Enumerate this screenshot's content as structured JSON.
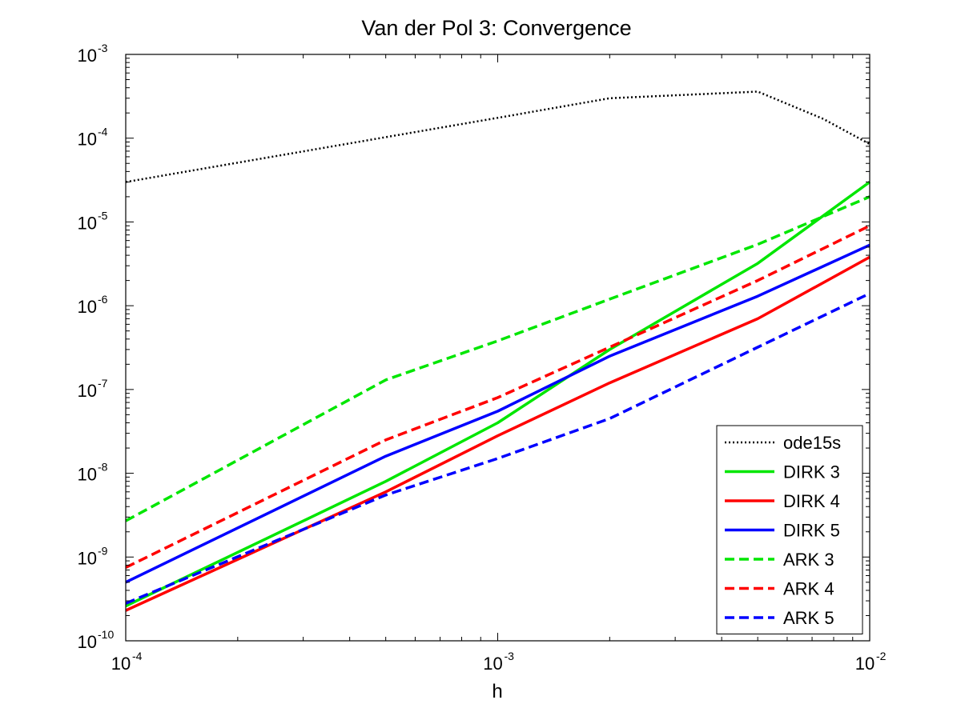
{
  "chart_data": {
    "type": "line",
    "title": "Van der Pol 3: Convergence",
    "xlabel": "h",
    "ylabel": "",
    "xscale": "log",
    "yscale": "log",
    "xlim": [
      0.0001,
      0.01
    ],
    "ylim": [
      1e-10,
      0.001
    ],
    "grid": false,
    "legend_position": "bottom-right",
    "x_ticks": [
      {
        "value": 0.0001,
        "base": "10",
        "exp": "-4"
      },
      {
        "value": 0.001,
        "base": "10",
        "exp": "-3"
      },
      {
        "value": 0.01,
        "base": "10",
        "exp": "-2"
      }
    ],
    "y_ticks": [
      {
        "value": 1e-10,
        "base": "10",
        "exp": "-10"
      },
      {
        "value": 1e-09,
        "base": "10",
        "exp": "-9"
      },
      {
        "value": 1e-08,
        "base": "10",
        "exp": "-8"
      },
      {
        "value": 1e-07,
        "base": "10",
        "exp": "-7"
      },
      {
        "value": 1e-06,
        "base": "10",
        "exp": "-6"
      },
      {
        "value": 1e-05,
        "base": "10",
        "exp": "-5"
      },
      {
        "value": 0.0001,
        "base": "10",
        "exp": "-4"
      },
      {
        "value": 0.001,
        "base": "10",
        "exp": "-3"
      }
    ],
    "series": [
      {
        "name": "ode15s",
        "color": "#000000",
        "style": "dotted",
        "x": [
          0.0001,
          0.001,
          0.002,
          0.005,
          0.0075,
          0.01
        ],
        "y": [
          3e-05,
          0.000175,
          0.0003,
          0.00036,
          0.00017,
          8.5e-05
        ]
      },
      {
        "name": "DIRK 3",
        "color": "#00e600",
        "style": "solid",
        "x": [
          0.0001,
          0.0005,
          0.001,
          0.002,
          0.005,
          0.01
        ],
        "y": [
          2.6e-10,
          8e-09,
          4e-08,
          3e-07,
          3.2e-06,
          3e-05
        ]
      },
      {
        "name": "DIRK 4",
        "color": "#ff0000",
        "style": "solid",
        "x": [
          0.0001,
          0.0005,
          0.001,
          0.002,
          0.005,
          0.01
        ],
        "y": [
          2.3e-10,
          6e-09,
          2.8e-08,
          1.2e-07,
          7e-07,
          3.8e-06
        ]
      },
      {
        "name": "DIRK 5",
        "color": "#0000ff",
        "style": "solid",
        "x": [
          0.0001,
          0.0005,
          0.001,
          0.002,
          0.005,
          0.01
        ],
        "y": [
          5e-10,
          1.6e-08,
          5.5e-08,
          2.5e-07,
          1.3e-06,
          5.3e-06
        ]
      },
      {
        "name": "ARK 3",
        "color": "#00e600",
        "style": "dashed",
        "x": [
          0.0001,
          0.0005,
          0.001,
          0.002,
          0.005,
          0.01
        ],
        "y": [
          2.7e-09,
          1.3e-07,
          3.8e-07,
          1.2e-06,
          5.4e-06,
          2e-05
        ]
      },
      {
        "name": "ARK 4",
        "color": "#ff0000",
        "style": "dashed",
        "x": [
          0.0001,
          0.0005,
          0.001,
          0.002,
          0.005,
          0.01
        ],
        "y": [
          7.5e-10,
          2.5e-08,
          8e-08,
          3.2e-07,
          2e-06,
          9e-06
        ]
      },
      {
        "name": "ARK 5",
        "color": "#0000ff",
        "style": "dashed",
        "x": [
          0.0001,
          0.0005,
          0.001,
          0.002,
          0.005,
          0.01
        ],
        "y": [
          2.8e-10,
          5.5e-09,
          1.5e-08,
          4.5e-08,
          3.2e-07,
          1.4e-06
        ]
      }
    ]
  }
}
